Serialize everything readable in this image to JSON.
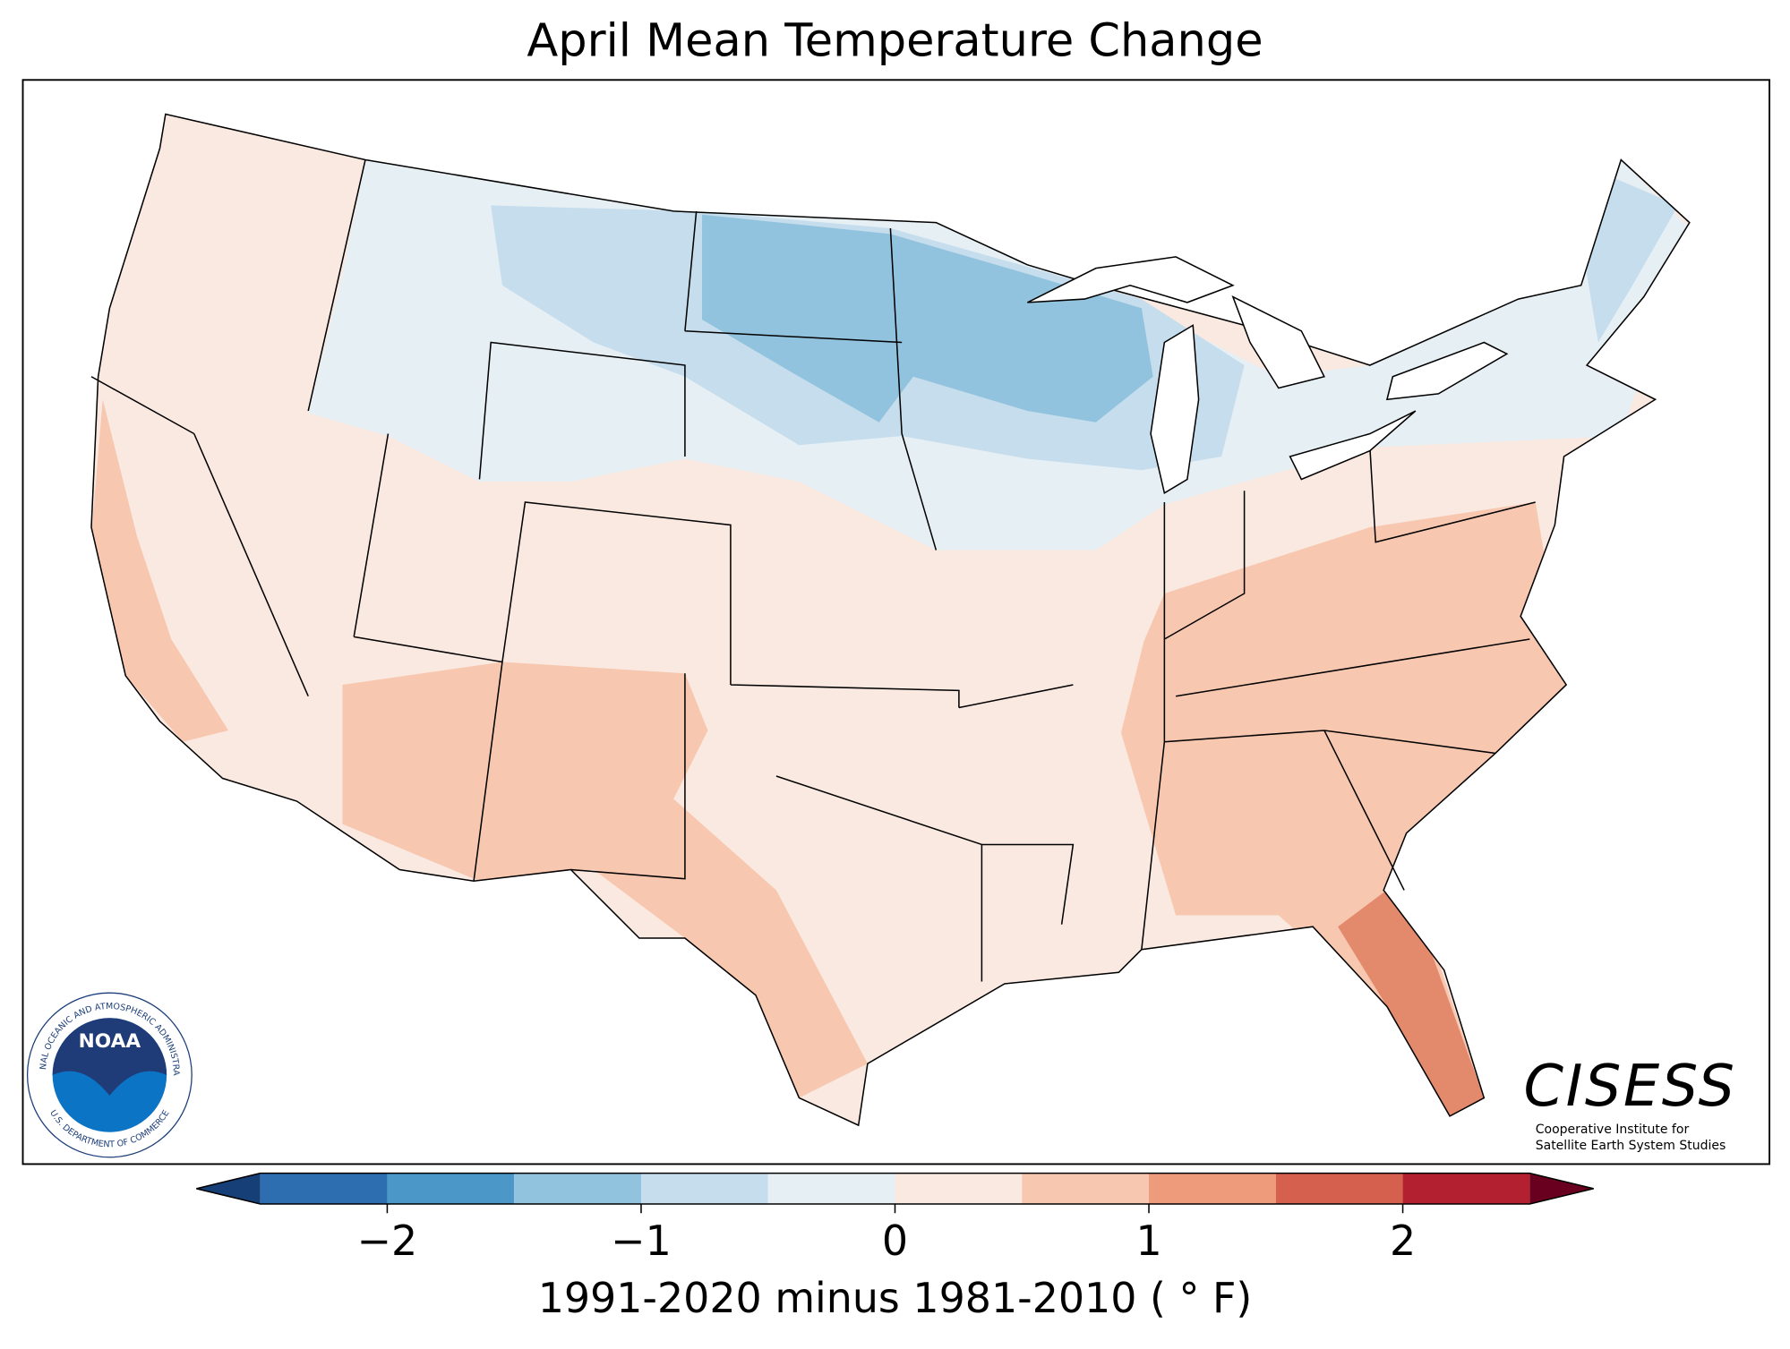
{
  "title": "April Mean Temperature Change",
  "colorbar": {
    "bounds": [
      -2.5,
      -2,
      -1.5,
      -1,
      -0.5,
      0,
      0.5,
      1,
      1.5,
      2,
      2.5
    ],
    "colors": [
      "#2d6eb1",
      "#4a97c8",
      "#91c3de",
      "#c5ddec",
      "#e6eff4",
      "#f9e9e1",
      "#f8c7af",
      "#ee9b7c",
      "#d6604e",
      "#b3202f"
    ],
    "extend_colors": [
      "#163f78",
      "#6a0020"
    ],
    "ticks": [
      {
        "value": -2,
        "label": "−2"
      },
      {
        "value": -1,
        "label": "−1"
      },
      0,
      1,
      2
    ],
    "label": "1991-2020 minus 1981-2010 ( ° F)"
  },
  "logos": {
    "noaa": "NOAA",
    "noaa_ring_top": "NATIONAL OCEANIC AND ATMOSPHERIC ADMINISTRATION",
    "noaa_ring_bottom": "U.S. DEPARTMENT OF COMMERCE",
    "cisess": "CISESS",
    "cisess_line1": "Cooperative Institute for",
    "cisess_line2": "Satellite Earth System Studies"
  }
}
